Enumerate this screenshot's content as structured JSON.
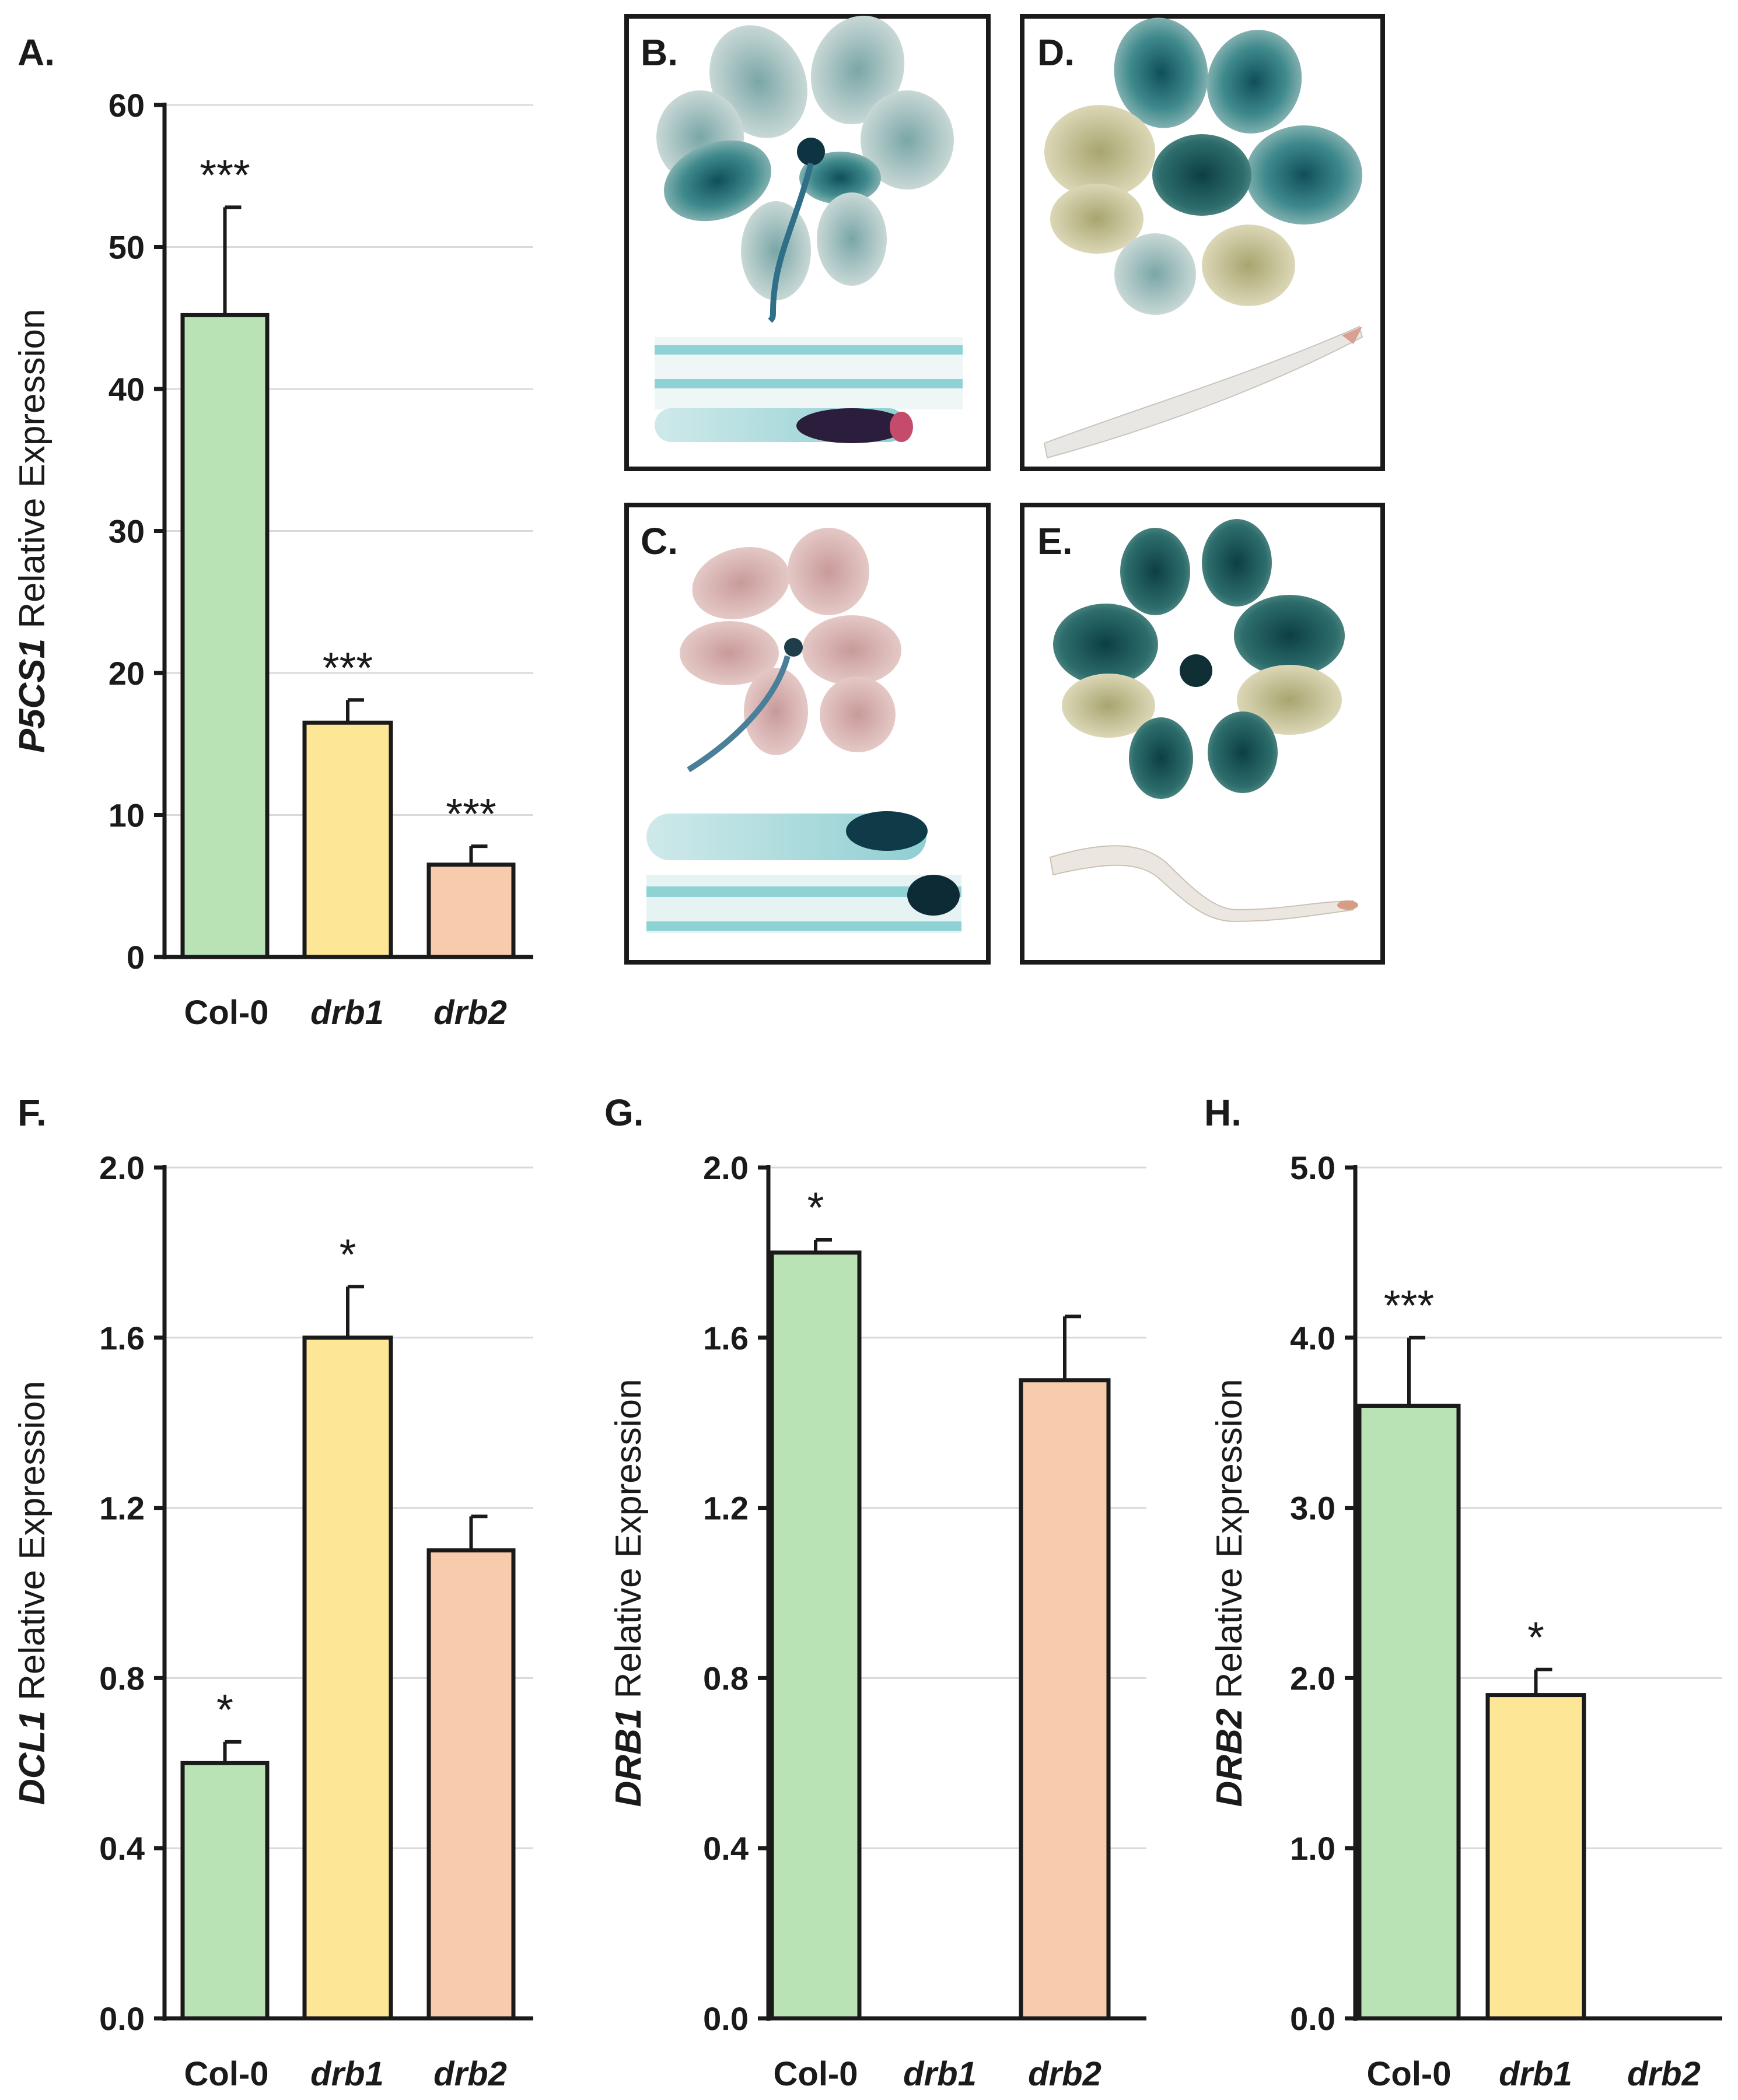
{
  "colors": {
    "col0": "#b9e2b5",
    "drb1": "#fde796",
    "drb2": "#f9cbad"
  },
  "chart_data": [
    {
      "id": "A",
      "panel_label": "A.",
      "type": "bar",
      "gene": "P5CS1",
      "ylabel_suffix": " Relative Expression",
      "categories": [
        "Col-0",
        "drb1",
        "drb2"
      ],
      "values": [
        45.2,
        16.5,
        6.5
      ],
      "errors": [
        7.6,
        1.6,
        1.3
      ],
      "significance": [
        "***",
        "***",
        "***"
      ],
      "ylim": [
        0,
        60
      ],
      "yticks": [
        "0",
        "10",
        "20",
        "30",
        "40",
        "50",
        "60"
      ]
    },
    {
      "id": "F",
      "panel_label": "F.",
      "type": "bar",
      "gene": "DCL1",
      "ylabel_suffix": " Relative Expression",
      "categories": [
        "Col-0",
        "drb1",
        "drb2"
      ],
      "values": [
        0.6,
        1.6,
        1.1
      ],
      "errors": [
        0.05,
        0.12,
        0.08
      ],
      "significance": [
        "*",
        "*",
        ""
      ],
      "ylim": [
        0,
        2.0
      ],
      "yticks": [
        "0.0",
        "0.4",
        "0.8",
        "1.2",
        "1.6",
        "2.0"
      ]
    },
    {
      "id": "G",
      "panel_label": "G.",
      "type": "bar",
      "gene": "DRB1",
      "ylabel_suffix": " Relative Expression",
      "categories": [
        "Col-0",
        "drb1",
        "drb2"
      ],
      "values": [
        1.8,
        0,
        1.5
      ],
      "errors": [
        0.03,
        0,
        0.15
      ],
      "significance": [
        "*",
        "",
        ""
      ],
      "ylim": [
        0,
        2.0
      ],
      "yticks": [
        "0.0",
        "0.4",
        "0.8",
        "1.2",
        "1.6",
        "2.0"
      ]
    },
    {
      "id": "H",
      "panel_label": "H.",
      "type": "bar",
      "gene": "DRB2",
      "ylabel_suffix": " Relative Expression",
      "categories": [
        "Col-0",
        "drb1",
        "drb2"
      ],
      "values": [
        3.6,
        1.9,
        0
      ],
      "errors": [
        0.4,
        0.15,
        0
      ],
      "significance": [
        "***",
        "*",
        ""
      ],
      "ylim": [
        0,
        5.0
      ],
      "yticks": [
        "0.0",
        "1.0",
        "2.0",
        "3.0",
        "4.0",
        "5.0"
      ]
    }
  ],
  "photo_panels": [
    {
      "id": "B",
      "label": "B."
    },
    {
      "id": "C",
      "label": "C."
    },
    {
      "id": "D",
      "label": "D."
    },
    {
      "id": "E",
      "label": "E."
    }
  ]
}
